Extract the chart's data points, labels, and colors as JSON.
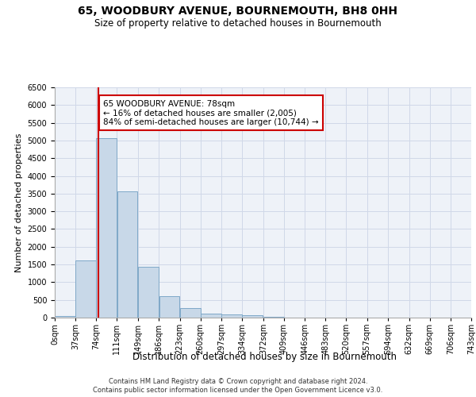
{
  "title_line1": "65, WOODBURY AVENUE, BOURNEMOUTH, BH8 0HH",
  "title_line2": "Size of property relative to detached houses in Bournemouth",
  "xlabel": "Distribution of detached houses by size in Bournemouth",
  "ylabel": "Number of detached properties",
  "footnote1": "Contains HM Land Registry data © Crown copyright and database right 2024.",
  "footnote2": "Contains public sector information licensed under the Open Government Licence v3.0.",
  "property_size": 78,
  "property_label": "65 WOODBURY AVENUE: 78sqm",
  "smaller_pct": "16%",
  "smaller_count": "2,005",
  "larger_pct": "84%",
  "larger_count": "10,744",
  "bar_left_edges": [
    0,
    37,
    74,
    111,
    149,
    186,
    223,
    260,
    297,
    334,
    372,
    409,
    446,
    483,
    520,
    557,
    594,
    632,
    669,
    706
  ],
  "bar_widths": [
    37,
    37,
    37,
    37,
    37,
    37,
    37,
    37,
    37,
    37,
    37,
    37,
    37,
    37,
    37,
    37,
    37,
    37,
    37,
    37
  ],
  "bar_heights": [
    50,
    1620,
    5060,
    3570,
    1430,
    600,
    270,
    120,
    90,
    75,
    30,
    10,
    5,
    5,
    5,
    2,
    2,
    2,
    2,
    2
  ],
  "tick_labels": [
    "0sqm",
    "37sqm",
    "74sqm",
    "111sqm",
    "149sqm",
    "186sqm",
    "223sqm",
    "260sqm",
    "297sqm",
    "334sqm",
    "372sqm",
    "409sqm",
    "446sqm",
    "483sqm",
    "520sqm",
    "557sqm",
    "594sqm",
    "632sqm",
    "669sqm",
    "706sqm",
    "743sqm"
  ],
  "bar_color": "#c8d8e8",
  "bar_edge_color": "#7fa8c8",
  "grid_color": "#d0d8e8",
  "annotation_box_color": "#cc0000",
  "vline_color": "#cc0000",
  "vline_x": 78,
  "ylim": [
    0,
    6500
  ],
  "yticks": [
    0,
    500,
    1000,
    1500,
    2000,
    2500,
    3000,
    3500,
    4000,
    4500,
    5000,
    5500,
    6000,
    6500
  ],
  "background_color": "#eef2f8",
  "title_fontsize": 10,
  "subtitle_fontsize": 8.5,
  "ylabel_fontsize": 8,
  "xlabel_fontsize": 8.5,
  "tick_fontsize": 7,
  "footnote_fontsize": 6,
  "annotation_fontsize": 7.5
}
